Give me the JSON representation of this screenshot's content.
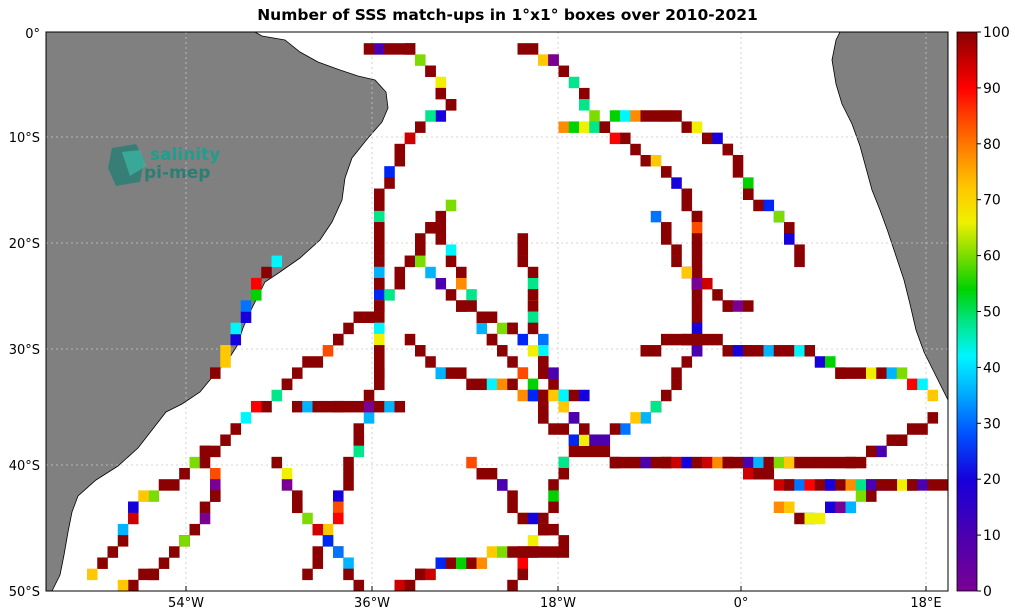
{
  "title": "Number of SSS match-ups in 1°x1° boxes over 2010-2021",
  "map": {
    "lon_range": [
      -68,
      20
    ],
    "lat_range": [
      -50,
      0
    ],
    "x_ticks": [
      {
        "lon": -54,
        "label": "54°W"
      },
      {
        "lon": -36,
        "label": "36°W"
      },
      {
        "lon": -18,
        "label": "18°W"
      },
      {
        "lon": 0,
        "label": "0°"
      },
      {
        "lon": 18,
        "label": "18°E"
      }
    ],
    "y_ticks": [
      {
        "lat": 0,
        "label": "0°"
      },
      {
        "lat": -10,
        "label": "10°S"
      },
      {
        "lat": -20,
        "label": "20°S"
      },
      {
        "lat": -30,
        "label": "30°S"
      },
      {
        "lat": -40,
        "label": "40°S"
      },
      {
        "lat": -50,
        "label": "50°S"
      }
    ],
    "land_color": "#808080",
    "grid": "dotted"
  },
  "logo": {
    "line1": "salinity",
    "line2": "pi-mep"
  },
  "colorbar": {
    "min": 0,
    "max": 100,
    "ticks": [
      "0",
      "10",
      "20",
      "30",
      "40",
      "50",
      "60",
      "70",
      "80",
      "90",
      "100"
    ],
    "colormap": [
      "#7a0094",
      "#4b00b0",
      "#1600dc",
      "#0026f5",
      "#0073ff",
      "#00b4ff",
      "#00f5ff",
      "#00e68a",
      "#00d200",
      "#7cdc00",
      "#f0f000",
      "#ffc800",
      "#ff8c00",
      "#ff4b00",
      "#ff0000",
      "#cd0000",
      "#8b0000"
    ]
  }
}
